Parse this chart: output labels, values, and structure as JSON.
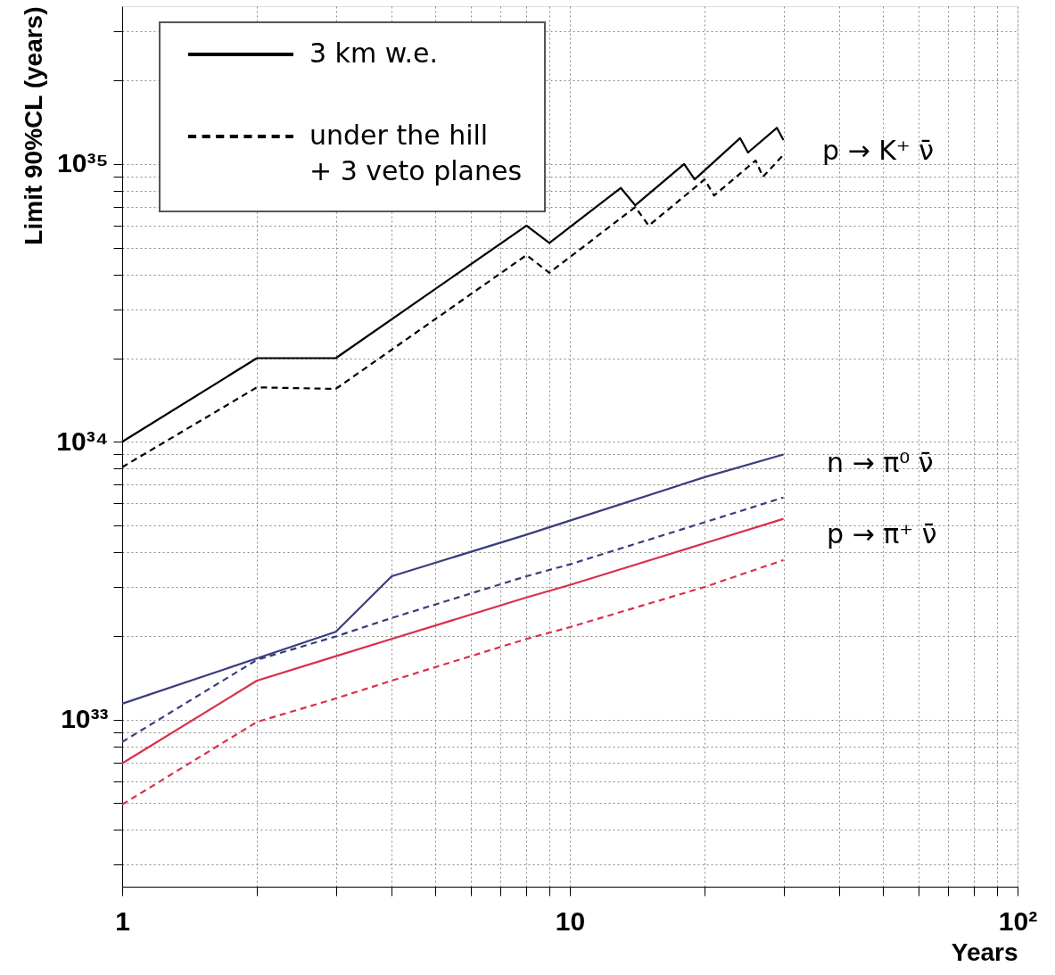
{
  "chart_data": {
    "type": "line",
    "xlabel": "Years",
    "ylabel": "Limit 90%CL (years)",
    "xlim": [
      1,
      100
    ],
    "ylim": [
      2.5e+32,
      3.7e+35
    ],
    "log": "xy",
    "grid": true,
    "legend": "top left",
    "xticks": [
      1,
      {
        "value": 2,
        "label": null
      },
      {
        "value": 3,
        "label": null
      },
      {
        "value": 4,
        "label": null
      },
      {
        "value": 5,
        "label": null
      },
      {
        "value": 6,
        "label": null
      },
      {
        "value": 7,
        "label": null
      },
      {
        "value": 8,
        "label": null
      },
      {
        "value": 9,
        "label": null
      },
      10,
      {
        "value": 20,
        "label": null
      },
      {
        "value": 30,
        "label": null
      },
      {
        "value": 40,
        "label": null
      },
      {
        "value": 50,
        "label": null
      },
      {
        "value": 60,
        "label": null
      },
      {
        "value": 70,
        "label": null
      },
      {
        "value": 80,
        "label": null
      },
      {
        "value": 90,
        "label": null
      },
      {
        "value": 100,
        "label": "10²"
      }
    ],
    "yticks": [
      {
        "value": 3e+32,
        "label": null
      },
      {
        "value": 4e+32,
        "label": null
      },
      {
        "value": 5e+32,
        "label": null
      },
      {
        "value": 6e+32,
        "label": null
      },
      {
        "value": 7e+32,
        "label": null
      },
      {
        "value": 8e+32,
        "label": null
      },
      {
        "value": 9e+32,
        "label": null
      },
      {
        "value": 1e+33,
        "label": "10³³"
      },
      {
        "value": 2e+33,
        "label": null
      },
      {
        "value": 3e+33,
        "label": null
      },
      {
        "value": 4e+33,
        "label": null
      },
      {
        "value": 5e+33,
        "label": null
      },
      {
        "value": 6e+33,
        "label": null
      },
      {
        "value": 7e+33,
        "label": null
      },
      {
        "value": 8e+33,
        "label": null
      },
      {
        "value": 9e+33,
        "label": null
      },
      {
        "value": 1e+34,
        "label": "10³⁴"
      },
      {
        "value": 2e+34,
        "label": null
      },
      {
        "value": 3e+34,
        "label": null
      },
      {
        "value": 4e+34,
        "label": null
      },
      {
        "value": 5e+34,
        "label": null
      },
      {
        "value": 6e+34,
        "label": null
      },
      {
        "value": 7e+34,
        "label": null
      },
      {
        "value": 8e+34,
        "label": null
      },
      {
        "value": 9e+34,
        "label": null
      },
      {
        "value": 1e+35,
        "label": "10³⁵"
      },
      {
        "value": 2e+35,
        "label": null
      },
      {
        "value": 3e+35,
        "label": null
      }
    ],
    "series": [
      {
        "name": "3 km w.e.",
        "color": "#000000",
        "line_style": "solid",
        "x": [
          1,
          2,
          3,
          8,
          9,
          13,
          14,
          18,
          19,
          24,
          25,
          29,
          30
        ],
        "values": [
          1e+34,
          2e+34,
          2e+34,
          6e+34,
          5.2e+34,
          8.2e+34,
          7.1e+34,
          1e+35,
          8.8e+34,
          1.24e+35,
          1.1e+35,
          1.35e+35,
          1.22e+35
        ]
      },
      {
        "name": "under the hill\n+ 3 veto planes",
        "color": "#000000",
        "line_style": "dashed",
        "x": [
          1,
          2,
          3,
          8,
          9,
          14,
          15,
          20,
          21,
          26,
          27,
          30
        ],
        "values": [
          8.1e+33,
          1.57e+34,
          1.55e+34,
          4.7e+34,
          4.06e+34,
          7e+34,
          6e+34,
          8.8e+34,
          7.7e+34,
          1.03e+35,
          9e+34,
          1.08e+35
        ]
      },
      {
        "color": "#3a3d7c",
        "line_style": "solid",
        "x": [
          1,
          2,
          3,
          4,
          8,
          10,
          20,
          30
        ],
        "values": [
          1.14e+33,
          1.66e+33,
          2.07e+33,
          3.28e+33,
          4.63e+33,
          5.2e+33,
          7.46e+33,
          9e+33
        ]
      },
      {
        "color": "#3a3d7c",
        "line_style": "dashed",
        "x": [
          1,
          2,
          3,
          4,
          8,
          10,
          20,
          30
        ],
        "values": [
          8.3e+32,
          1.64e+33,
          1.99e+33,
          2.32e+33,
          3.28e+33,
          3.62e+33,
          5.13e+33,
          6.3e+33
        ]
      },
      {
        "color": "#d8304a",
        "line_style": "solid",
        "x": [
          1,
          2,
          3,
          4,
          8,
          10,
          20,
          30
        ],
        "values": [
          6.95e+32,
          1.38e+33,
          1.69e+33,
          1.95e+33,
          2.75e+33,
          3.05e+33,
          4.31e+33,
          5.28e+33
        ]
      },
      {
        "color": "#d8304a",
        "line_style": "dashed",
        "x": [
          1,
          2,
          3,
          4,
          8,
          10,
          20,
          30
        ],
        "values": [
          4.94e+32,
          9.8e+32,
          1.19e+33,
          1.38e+33,
          1.95e+33,
          2.15e+33,
          3e+33,
          3.75e+33
        ]
      }
    ],
    "annotations": [
      "p → K⁺ ν̄",
      "n → π⁰ ν̄",
      "p → π⁺ ν̄"
    ]
  }
}
